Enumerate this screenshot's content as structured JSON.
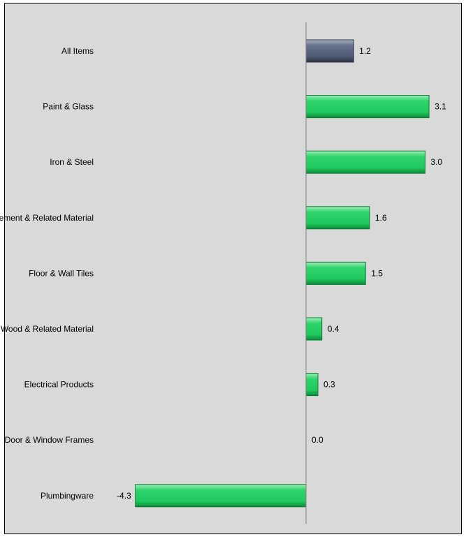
{
  "chart_data": {
    "type": "bar",
    "orientation": "horizontal",
    "categories": [
      "All Items",
      "Paint & Glass",
      "Iron & Steel",
      "Cement & Related Material",
      "Floor & Wall Tiles",
      "Wood & Related Material",
      "Electrical Products",
      "Door & Window Frames",
      "Plumbingware"
    ],
    "values": [
      1.2,
      3.1,
      3.0,
      1.6,
      1.5,
      0.4,
      0.3,
      0.0,
      -4.3
    ],
    "value_labels": [
      "1.2",
      "3.1",
      "3.0",
      "1.6",
      "1.5",
      "0.4",
      "0.3",
      "0.0",
      "-4.3"
    ],
    "title": "",
    "xlabel": "",
    "ylabel": "",
    "xlim": [
      -4.3,
      3.1
    ],
    "grid": false,
    "legend": "none",
    "colors": {
      "highlight": "#4f5b73",
      "bar": "#1fc95f",
      "background": "#d9d9d9",
      "axis": "#808080"
    }
  }
}
